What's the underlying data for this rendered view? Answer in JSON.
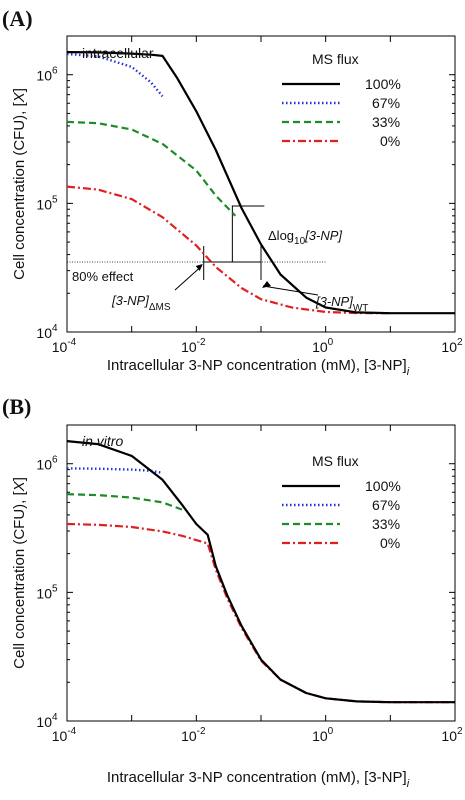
{
  "chart_data": [
    {
      "type": "line",
      "panel": "(A)",
      "inset_label": "intracellular",
      "xlabel": "Intracellular 3-NP concentration (mM), [3-NP]",
      "xlabel_sub": "i",
      "ylabel": "Cell concentration (CFU), [",
      "ylabel_var": "X",
      "ylabel_end": "]",
      "xscale": "log",
      "yscale": "log",
      "xlim": [
        0.0001,
        100
      ],
      "ylim": [
        10000,
        2000000
      ],
      "xticks": [
        "10",
        "10",
        "10",
        "10"
      ],
      "xtick_exp": [
        "-4",
        "-2",
        "0",
        "2"
      ],
      "yticks": [
        "10",
        "10",
        "10"
      ],
      "ytick_exp": [
        "4",
        "5",
        "6"
      ],
      "legend": {
        "title": "MS flux",
        "placement": "top-right",
        "entries": [
          {
            "label": "100%",
            "color": "#000000",
            "dash": "solid"
          },
          {
            "label": "67%",
            "color": "#2233cc",
            "dash": "dotted"
          },
          {
            "label": "33%",
            "color": "#1f8a2a",
            "dash": "dashed"
          },
          {
            "label": "0%",
            "color": "#e02020",
            "dash": "dashdot"
          }
        ]
      },
      "series": [
        {
          "name": "100%",
          "x": [
            0.0001,
            0.0003,
            0.001,
            0.002,
            0.003,
            0.005,
            0.01,
            0.02,
            0.05,
            0.1,
            0.2,
            0.5,
            1,
            3,
            10,
            100
          ],
          "y": [
            1500000,
            1490000,
            1460000,
            1430000,
            1400000,
            950000,
            520000,
            260000,
            92000,
            48000,
            28000,
            18500,
            15500,
            14200,
            14000,
            14000
          ]
        },
        {
          "name": "67%",
          "x": [
            0.0001,
            0.0003,
            0.001,
            0.002,
            0.003
          ],
          "y": [
            1450000,
            1390000,
            1150000,
            870000,
            680000
          ]
        },
        {
          "name": "33%",
          "x": [
            0.0001,
            0.0003,
            0.001,
            0.003,
            0.01,
            0.02,
            0.04
          ],
          "y": [
            430000,
            420000,
            375000,
            290000,
            180000,
            115000,
            80000
          ]
        },
        {
          "name": "0%",
          "x": [
            0.0001,
            0.0003,
            0.001,
            0.003,
            0.01,
            0.02,
            0.05,
            0.1,
            0.3,
            1,
            3,
            10
          ],
          "y": [
            135000,
            128000,
            108000,
            78000,
            47000,
            32000,
            22000,
            18000,
            15500,
            14300,
            14050,
            14000
          ]
        }
      ],
      "annotations": {
        "effect_label": "80% effect",
        "effect_level": 35000,
        "delta_prefix": "Δlog",
        "delta_sub": "10",
        "delta_var": "[3-NP]",
        "ms_label": "[3-NP]",
        "ms_sub": "ΔMS",
        "wt_label": "[3-NP]",
        "wt_sub": "WT",
        "ms_x": 0.013,
        "wt_x": 0.1
      }
    },
    {
      "type": "line",
      "panel": "(B)",
      "inset_label": "in vitro",
      "xlabel": "Intracellular 3-NP concentration (mM), [3-NP]",
      "xlabel_sub": "i",
      "ylabel": "Cell concentration (CFU), [",
      "ylabel_var": "X",
      "ylabel_end": "]",
      "xscale": "log",
      "yscale": "log",
      "xlim": [
        0.0001,
        100
      ],
      "ylim": [
        10000,
        2000000
      ],
      "xticks": [
        "10",
        "10",
        "10",
        "10"
      ],
      "xtick_exp": [
        "-4",
        "-2",
        "0",
        "2"
      ],
      "yticks": [
        "10",
        "10",
        "10"
      ],
      "ytick_exp": [
        "4",
        "5",
        "6"
      ],
      "legend": {
        "title": "MS flux",
        "placement": "top-right",
        "entries": [
          {
            "label": "100%",
            "color": "#000000",
            "dash": "solid"
          },
          {
            "label": "67%",
            "color": "#2233cc",
            "dash": "dotted"
          },
          {
            "label": "33%",
            "color": "#1f8a2a",
            "dash": "dashed"
          },
          {
            "label": "0%",
            "color": "#e02020",
            "dash": "dashdot"
          }
        ]
      },
      "series": [
        {
          "name": "100%",
          "x": [
            0.0001,
            0.0003,
            0.001,
            0.003,
            0.006,
            0.01,
            0.015,
            0.02,
            0.03,
            0.05,
            0.1,
            0.2,
            0.5,
            1,
            3,
            10,
            100
          ],
          "y": [
            1500000,
            1420000,
            1150000,
            750000,
            480000,
            340000,
            280000,
            160000,
            95000,
            55000,
            30000,
            21000,
            16500,
            15000,
            14200,
            14000,
            14000
          ]
        },
        {
          "name": "67%",
          "x": [
            0.0001,
            0.0003,
            0.001,
            0.002,
            0.003
          ],
          "y": [
            920000,
            915000,
            900000,
            880000,
            850000
          ]
        },
        {
          "name": "33%",
          "x": [
            0.0001,
            0.0003,
            0.001,
            0.003,
            0.006
          ],
          "y": [
            580000,
            570000,
            545000,
            500000,
            440000
          ]
        },
        {
          "name": "0%",
          "x": [
            0.0001,
            0.0003,
            0.001,
            0.003,
            0.006,
            0.01,
            0.015,
            0.02,
            0.03,
            0.05,
            0.1,
            0.2,
            0.5,
            1,
            3,
            10,
            100
          ],
          "y": [
            340000,
            335000,
            322000,
            298000,
            275000,
            255000,
            240000,
            150000,
            90000,
            53000,
            29500,
            21000,
            16500,
            15000,
            14200,
            14000,
            14000
          ]
        }
      ]
    }
  ]
}
